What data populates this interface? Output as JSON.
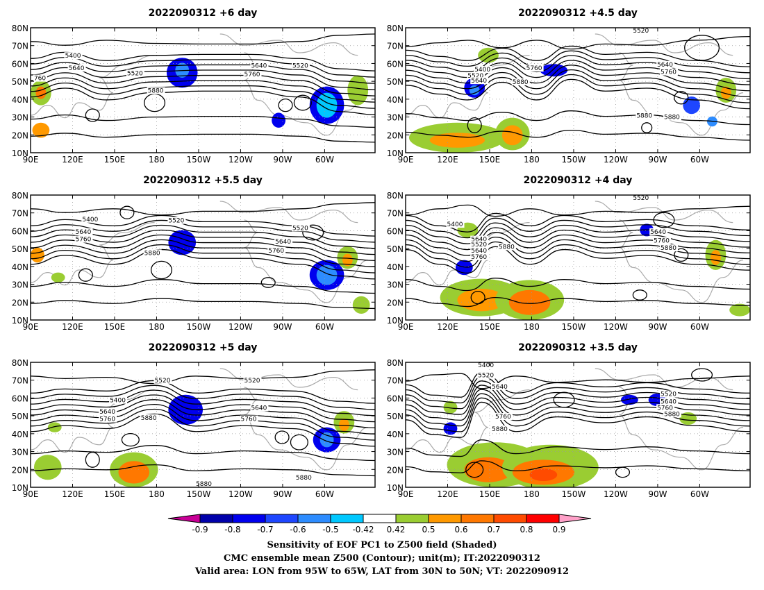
{
  "panels": [
    {
      "title": "2022090312 +6 day"
    },
    {
      "title": "2022090312 +4.5 day"
    },
    {
      "title": "2022090312 +5.5 day"
    },
    {
      "title": "2022090312 +4 day"
    },
    {
      "title": "2022090312 +5 day"
    },
    {
      "title": "2022090312 +3.5 day"
    }
  ],
  "lat_ticks": [
    "10N",
    "20N",
    "30N",
    "40N",
    "50N",
    "60N",
    "70N",
    "80N"
  ],
  "lon_ticks": [
    "90E",
    "120E",
    "150E",
    "180",
    "150W",
    "120W",
    "90W",
    "60W"
  ],
  "contour_levels": [
    "5400",
    "5520",
    "5640",
    "5760",
    "5880"
  ],
  "contour_labels": {
    "p0": [
      "5400",
      "5640",
      "5520",
      "5640",
      "5760",
      "5520",
      "5880",
      "760"
    ],
    "p1": [
      "5520",
      "5400",
      "5520",
      "5640",
      "5760",
      "5880",
      "5640",
      "5760",
      "5880",
      "5880"
    ],
    "p2": [
      "5400",
      "5640",
      "5760",
      "5520",
      "5880",
      "5520",
      "5640",
      "5760"
    ],
    "p3": [
      "5520",
      "5400",
      "5640",
      "5880",
      "5520",
      "5640",
      "5760",
      "5640",
      "5760",
      "5880"
    ],
    "p4": [
      "5520",
      "5400",
      "5640",
      "5760",
      "5880",
      "5520",
      "5640",
      "5760",
      "5880",
      "5880"
    ],
    "p5": [
      "5400",
      "5520",
      "5640",
      "5760",
      "5880",
      "5520",
      "5640",
      "5760",
      "5880"
    ]
  },
  "colorbar": {
    "ticks": [
      "-0.9",
      "-0.8",
      "-0.7",
      "-0.6",
      "-0.5",
      "-0.42",
      "0.42",
      "0.5",
      "0.6",
      "0.7",
      "0.8",
      "0.9"
    ],
    "colors": [
      "#0000aa",
      "#0000ee",
      "#1e46ff",
      "#2d8cff",
      "#00c8ff",
      "#ffffff",
      "#9acd32",
      "#ff9900",
      "#ff7800",
      "#ff4b00",
      "#ff0000"
    ],
    "low_color": "#c80096",
    "high_color": "#ffa0c8"
  },
  "caption": {
    "line1": "Sensitivity of EOF PC1 to Z500 field (Shaded)",
    "line2": "CMC ensemble mean Z500 (Contour); unit(m); IT:2022090312",
    "line3": "Valid area: LON from 95W to 65W, LAT from 30N to 50N; VT: 2022090912"
  }
}
